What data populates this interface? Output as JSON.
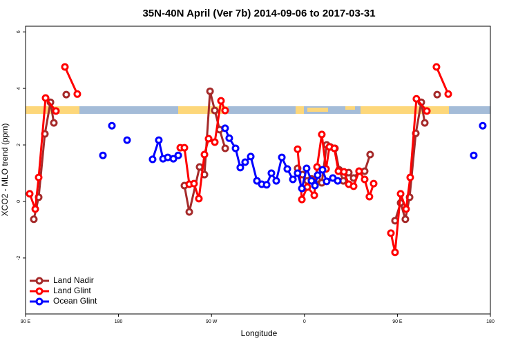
{
  "chart_data": {
    "type": "line",
    "title": "35N-40N April (Ver 7b)   2014-09-06 to 2017-03-31",
    "x_label": "Longitude",
    "y_label": "XCO2 - MLO trend (ppm)",
    "xlim": [
      90,
      540
    ],
    "xticks": [
      {
        "value": 90,
        "label": "90 E"
      },
      {
        "value": 180,
        "label": "180"
      },
      {
        "value": 270,
        "label": "90 W"
      },
      {
        "value": 360,
        "label": "0"
      },
      {
        "value": 450,
        "label": "90 E"
      },
      {
        "value": 540,
        "label": "180"
      }
    ],
    "ylim": [
      -3.98,
      6.2
    ],
    "yticks": [
      -2,
      0,
      2,
      4,
      6
    ],
    "legend": "bottom-left",
    "series": [
      {
        "name": "Land Nadir",
        "color": "#a52a2a",
        "x": [
          98.0,
          102.7,
          108.7,
          114.1,
          117.4,
          null,
          129.4,
          null,
          243.8,
          248.5,
          258.5,
          263.2,
          268.6,
          273.2,
          277.9,
          283.3,
          null,
          353.4,
          358.1,
          362.8,
          366.8,
          372.2,
          376.8,
          381.5,
          384.9,
          389.5,
          393.6,
          397.6,
          402.9,
          407.6,
          412.9,
          418.3,
          423.6,
          null,
          447.7,
          453.1,
          457.7,
          461.8,
          467.8,
          473.1,
          476.5,
          null,
          488.5
        ],
        "values": [
          -0.63,
          0.15,
          2.39,
          3.51,
          2.78,
          null,
          3.78,
          null,
          0.56,
          -0.37,
          1.22,
          0.95,
          3.9,
          3.22,
          2.54,
          1.88,
          null,
          1.17,
          0.95,
          0.73,
          0.8,
          0.78,
          0.66,
          2.0,
          1.93,
          1.88,
          1.12,
          0.73,
          1.02,
          0.83,
          1.07,
          1.07,
          1.66,
          null,
          -0.68,
          -0.05,
          -0.63,
          0.15,
          2.41,
          3.51,
          2.78,
          null,
          3.78
        ]
      },
      {
        "name": "Land Glint",
        "color": "#ff0000",
        "x": [
          94.0,
          99.4,
          102.7,
          109.4,
          119.4,
          null,
          128.1,
          140.1,
          null,
          239.8,
          243.8,
          248.5,
          253.1,
          257.8,
          263.2,
          267.2,
          273.2,
          279.2,
          283.2,
          null,
          353.4,
          357.5,
          362.8,
          369.5,
          372.2,
          376.8,
          380.9,
          384.2,
          388.9,
          392.9,
          398.2,
          402.9,
          407.6,
          412.9,
          418.3,
          422.9,
          427.0,
          null,
          443.7,
          447.7,
          453.1,
          458.4,
          462.4,
          468.4,
          478.5,
          null,
          487.8,
          499.2
        ],
        "values": [
          0.27,
          -0.27,
          0.85,
          3.66,
          3.2,
          null,
          4.76,
          3.8,
          null,
          1.9,
          1.9,
          0.61,
          0.63,
          0.1,
          1.66,
          2.22,
          2.1,
          3.56,
          3.22,
          null,
          1.85,
          0.07,
          0.51,
          0.22,
          1.22,
          2.37,
          1.15,
          1.93,
          1.88,
          1.07,
          1.05,
          0.61,
          0.54,
          1.07,
          0.78,
          0.17,
          0.63,
          null,
          -1.12,
          -1.8,
          0.27,
          -0.27,
          0.85,
          3.63,
          3.2,
          null,
          4.76,
          3.8
        ]
      },
      {
        "name": "Ocean Glint",
        "color": "#0000ff",
        "x": [
          164.9,
          null,
          173.6,
          null,
          188.3,
          null,
          213.0,
          219.0,
          223.1,
          227.7,
          233.1,
          237.8,
          null,
          283.2,
          287.2,
          293.3,
          297.9,
          302.6,
          308.0,
          314.0,
          318.7,
          323.4,
          328.0,
          332.7,
          338.1,
          343.4,
          348.8,
          353.4,
          357.5,
          362.1,
          366.8,
          370.2,
          372.8,
          377.5,
          381.5,
          387.5,
          392.2,
          null,
          523.9,
          null,
          532.6
        ],
        "values": [
          1.63,
          null,
          2.68,
          null,
          2.17,
          null,
          1.49,
          2.17,
          1.51,
          1.56,
          1.51,
          1.63,
          null,
          2.59,
          2.24,
          1.88,
          1.2,
          1.39,
          1.59,
          0.73,
          0.61,
          0.59,
          1.0,
          0.73,
          1.56,
          1.15,
          0.78,
          1.0,
          0.46,
          1.17,
          0.73,
          0.56,
          0.93,
          1.12,
          0.71,
          0.83,
          0.73,
          null,
          1.63,
          null,
          2.68
        ]
      }
    ]
  }
}
